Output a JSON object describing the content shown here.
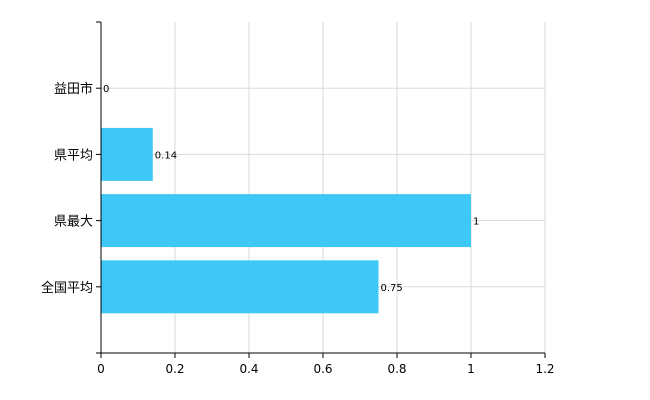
{
  "chart_data": {
    "type": "bar",
    "orientation": "horizontal",
    "categories": [
      "益田市",
      "県平均",
      "県最大",
      "全国平均"
    ],
    "values": [
      0,
      0.14,
      1,
      0.75
    ],
    "data_labels": [
      "0",
      "0.14",
      "1",
      "0.75"
    ],
    "x_ticks": [
      "0",
      "0.2",
      "0.4",
      "0.6",
      "0.8",
      "1",
      "1.2"
    ],
    "xlim": [
      0,
      1.2
    ],
    "grid": true,
    "legend": "none",
    "bar_color": "#3ec8f5"
  }
}
